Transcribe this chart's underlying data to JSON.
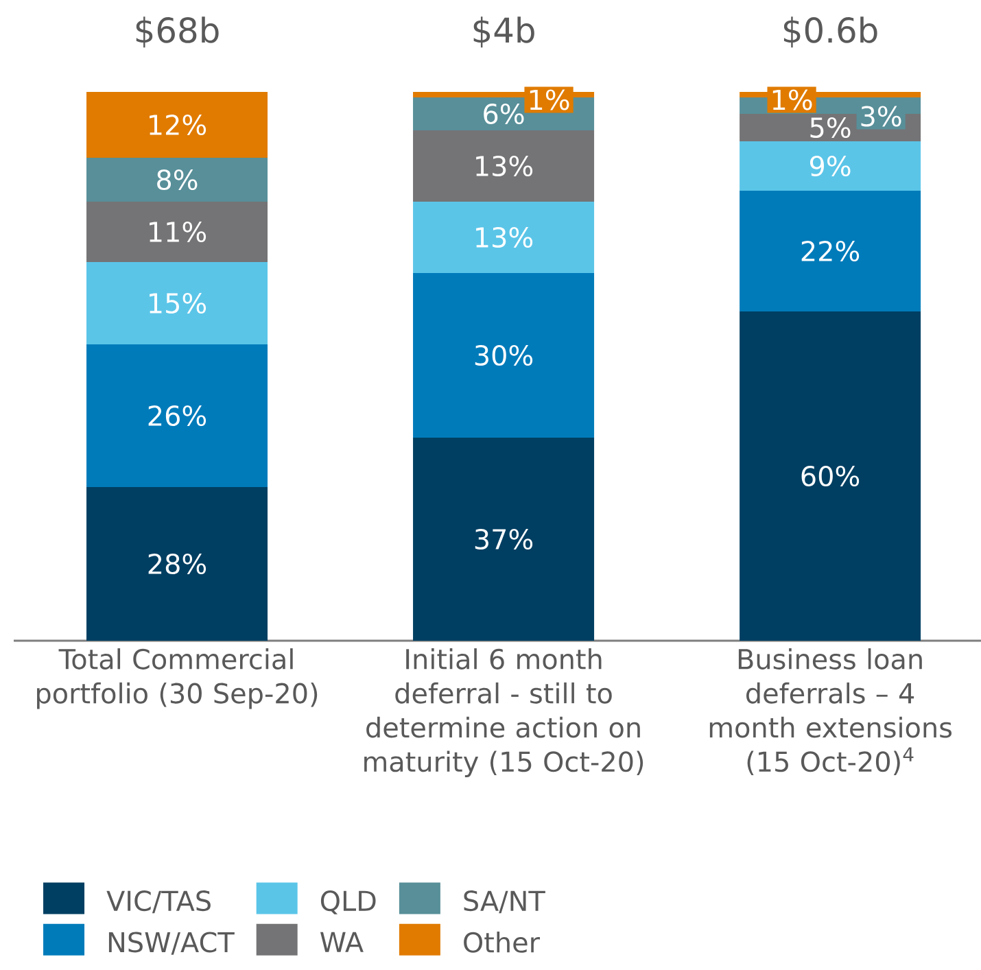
{
  "chart_data": {
    "type": "bar",
    "stacked": true,
    "categories": [
      "Total Commercial portfolio (30 Sep-20)",
      "Initial 6 month deferral - still to determine action on maturity (15 Oct-20)",
      "Business loan deferrals – 4 month extensions (15 Oct-20)$^{4}$"
    ],
    "series": [
      {
        "name": "VIC/TAS",
        "color": "#003f62",
        "values": [
          28,
          37,
          60
        ],
        "value_labels": [
          "28%",
          "37%",
          "60%"
        ]
      },
      {
        "name": "NSW/ACT",
        "color": "#007bba",
        "values": [
          26,
          30,
          22
        ],
        "value_labels": [
          "26%",
          "30%",
          "22%"
        ]
      },
      {
        "name": "QLD",
        "color": "#5bc5e8",
        "values": [
          15,
          13,
          9
        ],
        "value_labels": [
          "15%",
          "13%",
          "9%"
        ]
      },
      {
        "name": "WA",
        "color": "#747476",
        "values": [
          11,
          13,
          5
        ],
        "value_labels": [
          "11%",
          "13%",
          "5%"
        ]
      },
      {
        "name": "SA/NT",
        "color": "#588f99",
        "values": [
          8,
          6,
          3
        ],
        "value_labels": [
          "8%",
          "6%",
          "3%"
        ]
      },
      {
        "name": "Other",
        "color": "#e07b00",
        "values": [
          12,
          1,
          1
        ],
        "value_labels": [
          "12%",
          "1%",
          "1%"
        ]
      }
    ],
    "annotations": [
      {
        "text": "$68b",
        "x": "Total Commercial portfolio (30 Sep-20)",
        "y": 100
      },
      {
        "text": "$4b",
        "x": "Initial 6 month deferral - still to determine action on maturity (15 Oct-20)",
        "y": 100
      },
      {
        "text": "$0.6b",
        "x": "Business loan deferrals – 4 month extensions (15 Oct-20)$^{4}$",
        "y": 100
      }
    ],
    "legend": "bottom left"
  }
}
